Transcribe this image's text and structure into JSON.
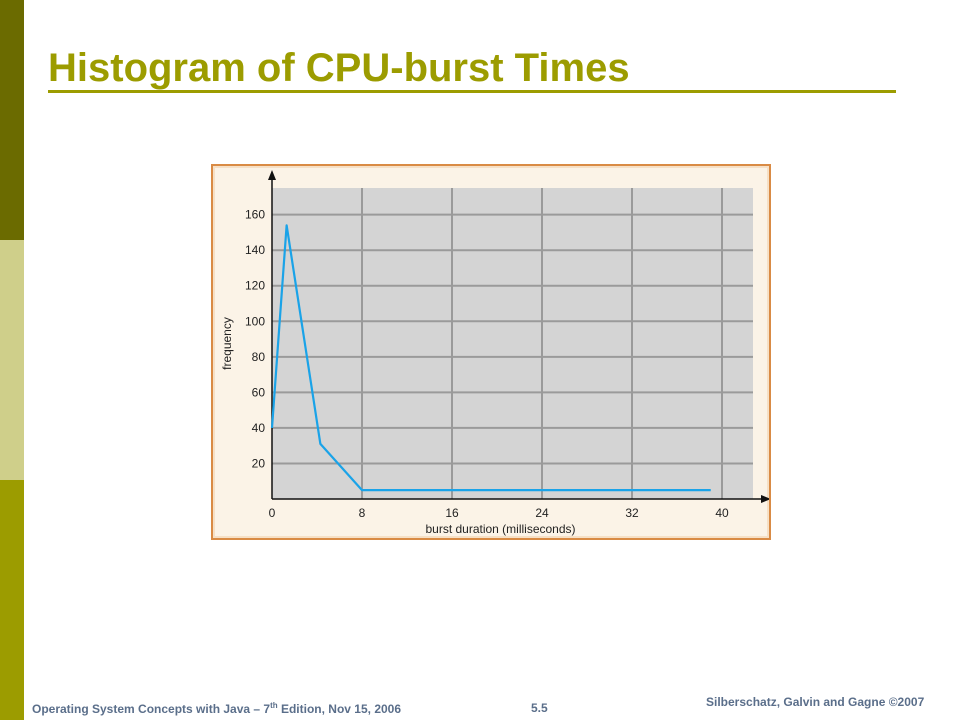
{
  "slide": {
    "title": "Histogram of CPU-burst Times",
    "colors": {
      "accent": "#9c9c00",
      "strip_dark": "#6b6b00",
      "strip_light": "#cfcf8a",
      "frame_border": "#d98b45",
      "plot_bg": "#d4d4d4",
      "grid": "#9a9a9a",
      "line": "#1aa3e8",
      "footer_text": "#5a6e8a"
    }
  },
  "footer": {
    "left_prefix": "Operating System Concepts with Java – 7",
    "left_sup": "th",
    "left_suffix": " Edition, Nov 15, 2006",
    "center": "5.5",
    "right": "Silberschatz, Galvin and Gagne ©2007"
  },
  "chart_data": {
    "type": "line",
    "title": "",
    "xlabel": "burst duration (milliseconds)",
    "ylabel": "frequency",
    "xlim": [
      0,
      40
    ],
    "ylim": [
      0,
      175
    ],
    "x_ticks": [
      0,
      8,
      16,
      24,
      32,
      40
    ],
    "y_ticks": [
      20,
      40,
      60,
      80,
      100,
      120,
      140,
      160
    ],
    "grid": true,
    "series": [
      {
        "x": [
          0,
          1.3,
          4.3,
          8,
          39
        ],
        "y": [
          40,
          154,
          31,
          5,
          5
        ]
      }
    ]
  }
}
